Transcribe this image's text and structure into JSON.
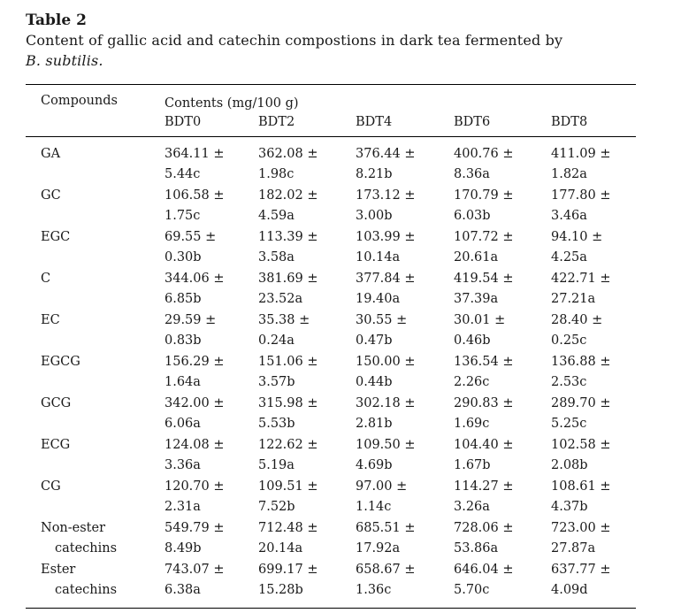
{
  "table_label": "Table 2",
  "caption_line1": "Content of gallic acid and catechin compostions in dark tea fermented by",
  "caption_species": "B. subtilis.",
  "header": {
    "compounds": "Compounds",
    "contents": "Contents (mg/100 g)",
    "columns": [
      "BDT0",
      "BDT2",
      "BDT4",
      "BDT6",
      "BDT8"
    ]
  },
  "rows": [
    {
      "name": [
        "GA"
      ],
      "values": [
        [
          "364.11 ±",
          "5.44c"
        ],
        [
          "362.08 ±",
          "1.98c"
        ],
        [
          "376.44 ±",
          "8.21b"
        ],
        [
          "400.76 ±",
          "8.36a"
        ],
        [
          "411.09 ±",
          "1.82a"
        ]
      ]
    },
    {
      "name": [
        "GC"
      ],
      "values": [
        [
          "106.58 ±",
          "1.75c"
        ],
        [
          "182.02 ±",
          "4.59a"
        ],
        [
          "173.12 ±",
          "3.00b"
        ],
        [
          "170.79 ±",
          "6.03b"
        ],
        [
          "177.80 ±",
          "3.46a"
        ]
      ]
    },
    {
      "name": [
        "EGC"
      ],
      "values": [
        [
          "69.55 ±",
          "0.30b"
        ],
        [
          "113.39 ±",
          "3.58a"
        ],
        [
          "103.99 ±",
          "10.14a"
        ],
        [
          "107.72 ±",
          "20.61a"
        ],
        [
          "94.10 ±",
          "4.25a"
        ]
      ]
    },
    {
      "name": [
        "C"
      ],
      "values": [
        [
          "344.06 ±",
          "6.85b"
        ],
        [
          "381.69 ±",
          "23.52a"
        ],
        [
          "377.84 ±",
          "19.40a"
        ],
        [
          "419.54 ±",
          "37.39a"
        ],
        [
          "422.71 ±",
          "27.21a"
        ]
      ]
    },
    {
      "name": [
        "EC"
      ],
      "values": [
        [
          "29.59 ±",
          "0.83b"
        ],
        [
          "35.38 ±",
          "0.24a"
        ],
        [
          "30.55 ±",
          "0.47b"
        ],
        [
          "30.01 ±",
          "0.46b"
        ],
        [
          "28.40 ±",
          "0.25c"
        ]
      ]
    },
    {
      "name": [
        "EGCG"
      ],
      "values": [
        [
          "156.29 ±",
          "1.64a"
        ],
        [
          "151.06 ±",
          "3.57b"
        ],
        [
          "150.00 ±",
          "0.44b"
        ],
        [
          "136.54 ±",
          "2.26c"
        ],
        [
          "136.88 ±",
          "2.53c"
        ]
      ]
    },
    {
      "name": [
        "GCG"
      ],
      "values": [
        [
          "342.00 ±",
          "6.06a"
        ],
        [
          "315.98 ±",
          "5.53b"
        ],
        [
          "302.18 ±",
          "2.81b"
        ],
        [
          "290.83 ±",
          "1.69c"
        ],
        [
          "289.70 ±",
          "5.25c"
        ]
      ]
    },
    {
      "name": [
        "ECG"
      ],
      "values": [
        [
          "124.08 ±",
          "3.36a"
        ],
        [
          "122.62 ±",
          "5.19a"
        ],
        [
          "109.50 ±",
          "4.69b"
        ],
        [
          "104.40 ±",
          "1.67b"
        ],
        [
          "102.58 ±",
          "2.08b"
        ]
      ]
    },
    {
      "name": [
        "CG"
      ],
      "values": [
        [
          "120.70 ±",
          "2.31a"
        ],
        [
          "109.51 ±",
          "7.52b"
        ],
        [
          "97.00 ±",
          "1.14c"
        ],
        [
          "114.27 ±",
          "3.26a"
        ],
        [
          "108.61 ±",
          "4.37b"
        ]
      ]
    },
    {
      "name": [
        "Non-ester",
        "catechins"
      ],
      "values": [
        [
          "549.79 ±",
          "8.49b"
        ],
        [
          "712.48 ±",
          "20.14a"
        ],
        [
          "685.51 ±",
          "17.92a"
        ],
        [
          "728.06 ±",
          "53.86a"
        ],
        [
          "723.00 ±",
          "27.87a"
        ]
      ]
    },
    {
      "name": [
        "Ester",
        "catechins"
      ],
      "values": [
        [
          "743.07 ±",
          "6.38a"
        ],
        [
          "699.17 ±",
          "15.28b"
        ],
        [
          "658.67 ±",
          "1.36c"
        ],
        [
          "646.04 ±",
          "5.70c"
        ],
        [
          "637.77 ±",
          "4.09d"
        ]
      ]
    }
  ]
}
